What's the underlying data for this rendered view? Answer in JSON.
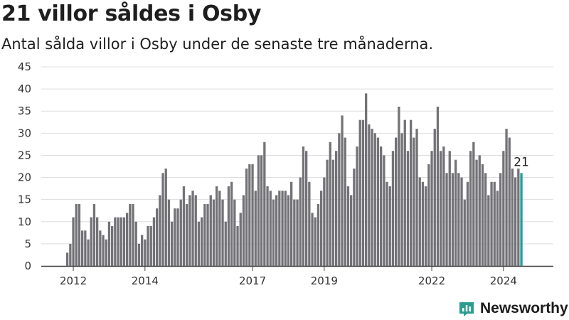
{
  "header": {
    "title": "21 villor såldes i Osby",
    "subtitle": "Antal sålda villor i Osby under de senaste tre månaderna."
  },
  "brand": {
    "name": "Newsworthy",
    "logo_icon": "newsworthy-chart-icon"
  },
  "colors": {
    "bar": "#737276",
    "highlight": "#1f9e98",
    "grid": "#dedede",
    "axis": "#444444",
    "brand": "#2a9d8f"
  },
  "chart_data": {
    "type": "bar",
    "title": "21 villor såldes i Osby",
    "subtitle": "Antal sålda villor i Osby under de senaste tre månaderna.",
    "xlabel": "",
    "ylabel": "",
    "ylim": [
      0,
      45
    ],
    "yticks": [
      0,
      5,
      10,
      15,
      20,
      25,
      30,
      35,
      40,
      45
    ],
    "xticks": [
      "2012",
      "2014",
      "2017",
      "2019",
      "2022",
      "2024"
    ],
    "grid": true,
    "legend": "none",
    "highlight_last": true,
    "last_label": "21",
    "values": [
      3,
      5,
      11,
      14,
      14,
      8,
      8,
      6,
      11,
      14,
      11,
      8,
      7,
      6,
      10,
      9,
      11,
      11,
      11,
      11,
      12,
      14,
      14,
      10,
      5,
      7,
      6,
      9,
      9,
      11,
      13,
      16,
      21,
      22,
      15,
      10,
      13,
      13,
      15,
      18,
      14,
      16,
      17,
      16,
      10,
      11,
      14,
      14,
      16,
      15,
      18,
      17,
      15,
      10,
      18,
      19,
      15,
      9,
      12,
      16,
      22,
      23,
      23,
      17,
      25,
      25,
      28,
      18,
      17,
      15,
      16,
      17,
      17,
      17,
      16,
      19,
      15,
      15,
      20,
      27,
      26,
      19,
      12,
      11,
      14,
      17,
      20,
      24,
      28,
      24,
      26,
      30,
      34,
      29,
      18,
      16,
      22,
      27,
      33,
      33,
      39,
      32,
      31,
      30,
      29,
      27,
      25,
      19,
      18,
      26,
      29,
      36,
      30,
      33,
      26,
      33,
      29,
      31,
      20,
      19,
      18,
      23,
      26,
      31,
      36,
      26,
      27,
      21,
      26,
      21,
      24,
      21,
      20,
      15,
      19,
      26,
      28,
      24,
      25,
      23,
      21,
      16,
      19,
      19,
      17,
      21,
      26,
      31,
      29,
      22,
      20,
      22,
      21
    ]
  }
}
